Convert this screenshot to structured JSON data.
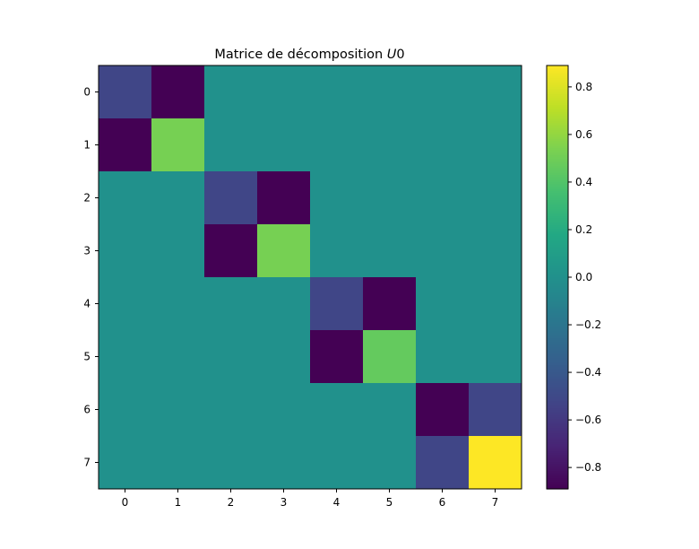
{
  "chart_data": {
    "type": "heatmap",
    "title": "Matrice de décomposition ",
    "title_math": "U",
    "title_math_suffix": "0",
    "x_ticks": [
      "0",
      "1",
      "2",
      "3",
      "4",
      "5",
      "6",
      "7"
    ],
    "y_ticks": [
      "0",
      "1",
      "2",
      "3",
      "4",
      "5",
      "6",
      "7"
    ],
    "values": [
      [
        -0.52,
        -0.89,
        0,
        0,
        0,
        0,
        0,
        0
      ],
      [
        -0.89,
        0.52,
        0,
        0,
        0,
        0,
        0,
        0
      ],
      [
        0,
        0,
        -0.52,
        -0.89,
        0,
        0,
        0,
        0
      ],
      [
        0,
        0,
        -0.89,
        0.52,
        0,
        0,
        0,
        0
      ],
      [
        0,
        0,
        0,
        0,
        -0.52,
        -0.89,
        0,
        0
      ],
      [
        0,
        0,
        0,
        0,
        -0.89,
        0.46,
        0,
        0
      ],
      [
        0,
        0,
        0,
        0,
        0,
        0,
        -0.89,
        -0.52
      ],
      [
        0,
        0,
        0,
        0,
        0,
        0,
        -0.52,
        0.89
      ]
    ],
    "colormap": "viridis",
    "vmin": -0.89,
    "vmax": 0.89,
    "colorbar_ticks": [
      0.8,
      0.6,
      0.4,
      0.2,
      0.0,
      -0.2,
      -0.4,
      -0.6,
      -0.8
    ],
    "colorbar_tick_labels": [
      "0.8",
      "0.6",
      "0.4",
      "0.2",
      "0.0",
      "−0.2",
      "−0.4",
      "−0.6",
      "−0.8"
    ]
  }
}
